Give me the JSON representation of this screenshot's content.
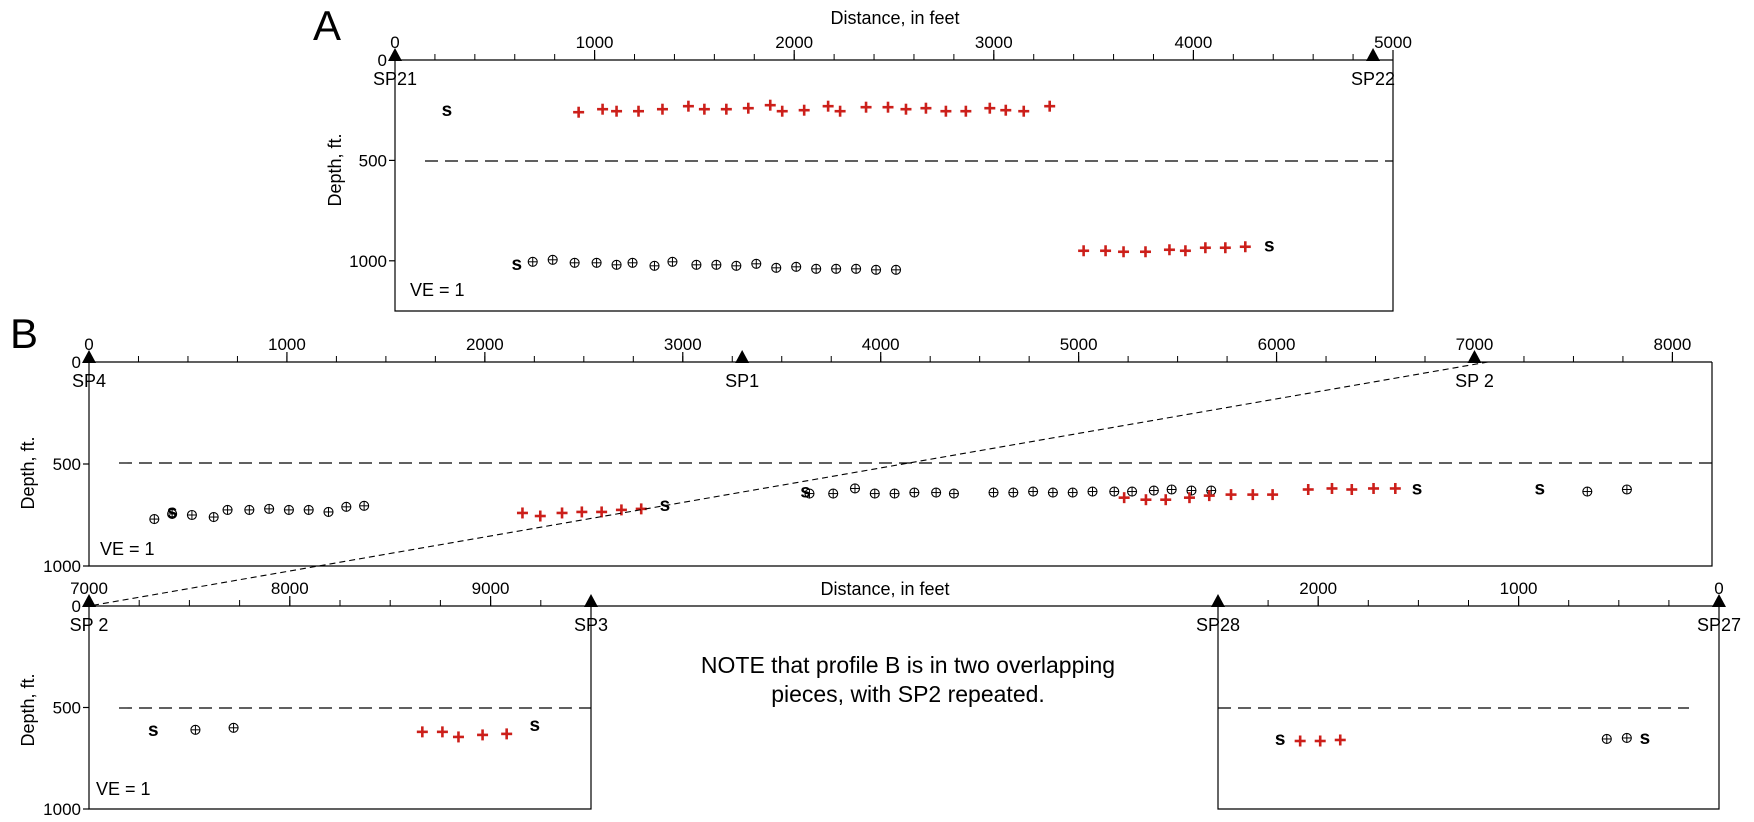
{
  "note": {
    "line1": "NOTE that profile B is in two overlapping",
    "line2": "pieces, with SP2 repeated."
  },
  "colors": {
    "plus": "#cc1f1a",
    "ink": "#000000"
  },
  "chart_data": [
    {
      "id": "A",
      "type": "scatter",
      "panel_label": "A",
      "xlabel": "Distance, in feet",
      "ylabel": "Depth, ft.",
      "ve_label": "VE = 1",
      "xlim": [
        0,
        5000
      ],
      "ylim": [
        1250,
        0
      ],
      "x_ticks": [
        0,
        1000,
        2000,
        3000,
        4000,
        5000
      ],
      "x_minor_step": 200,
      "y_ticks": [
        0,
        500,
        1000
      ],
      "dashed_depth": 500,
      "shotpoints": [
        {
          "label": "SP21",
          "x": 0
        },
        {
          "label": "SP22",
          "x": 4900
        }
      ],
      "series": [
        {
          "marker": "plus",
          "points": [
            [
              920,
              260
            ],
            [
              1040,
              245
            ],
            [
              1110,
              255
            ],
            [
              1220,
              255
            ],
            [
              1340,
              245
            ],
            [
              1470,
              230
            ],
            [
              1550,
              245
            ],
            [
              1660,
              245
            ],
            [
              1770,
              240
            ],
            [
              1880,
              225
            ],
            [
              1940,
              255
            ],
            [
              2050,
              250
            ],
            [
              2170,
              230
            ],
            [
              2230,
              255
            ],
            [
              2360,
              235
            ],
            [
              2470,
              235
            ],
            [
              2560,
              245
            ],
            [
              2660,
              240
            ],
            [
              2760,
              255
            ],
            [
              2860,
              255
            ],
            [
              2980,
              240
            ],
            [
              3060,
              250
            ],
            [
              3150,
              255
            ],
            [
              3280,
              230
            ]
          ]
        },
        {
          "marker": "plus",
          "points": [
            [
              3450,
              950
            ],
            [
              3560,
              950
            ],
            [
              3650,
              955
            ],
            [
              3760,
              955
            ],
            [
              3880,
              945
            ],
            [
              3960,
              950
            ],
            [
              4060,
              935
            ],
            [
              4160,
              935
            ],
            [
              4260,
              930
            ]
          ]
        },
        {
          "marker": "oplus",
          "points": [
            [
              690,
              1005
            ],
            [
              790,
              995
            ],
            [
              900,
              1010
            ],
            [
              1010,
              1010
            ],
            [
              1110,
              1020
            ],
            [
              1190,
              1010
            ],
            [
              1300,
              1025
            ],
            [
              1390,
              1005
            ],
            [
              1510,
              1020
            ],
            [
              1610,
              1020
            ],
            [
              1710,
              1025
            ],
            [
              1810,
              1015
            ],
            [
              1910,
              1035
            ],
            [
              2010,
              1030
            ],
            [
              2110,
              1040
            ],
            [
              2210,
              1040
            ],
            [
              2310,
              1040
            ],
            [
              2410,
              1045
            ],
            [
              2510,
              1045
            ]
          ]
        },
        {
          "marker": "s",
          "points": [
            [
              260,
              250
            ],
            [
              610,
              1015
            ],
            [
              4380,
              925
            ]
          ]
        }
      ]
    },
    {
      "id": "B1",
      "type": "scatter",
      "panel_label": "B",
      "xlabel": "Distance, in feet",
      "ylabel": "Depth, ft.",
      "ve_label": "VE = 1",
      "xlim": [
        0,
        8200
      ],
      "ylim": [
        1000,
        0
      ],
      "x_ticks": [
        0,
        1000,
        2000,
        3000,
        4000,
        5000,
        6000,
        7000,
        8000
      ],
      "x_minor_step": 250,
      "y_ticks": [
        0,
        500,
        1000
      ],
      "dashed_depth": 500,
      "shotpoints": [
        {
          "label": "SP4",
          "x": 0
        },
        {
          "label": "SP1",
          "x": 3300
        },
        {
          "label": "SP 2",
          "x": 7000
        }
      ],
      "series": [
        {
          "marker": "oplus",
          "points": [
            [
              330,
              770
            ],
            [
              420,
              745
            ],
            [
              520,
              750
            ],
            [
              630,
              760
            ],
            [
              700,
              725
            ],
            [
              810,
              725
            ],
            [
              910,
              720
            ],
            [
              1010,
              725
            ],
            [
              1110,
              725
            ],
            [
              1210,
              735
            ],
            [
              1300,
              710
            ],
            [
              1390,
              705
            ],
            [
              3640,
              645
            ],
            [
              3760,
              645
            ],
            [
              3870,
              620
            ],
            [
              3970,
              645
            ],
            [
              4070,
              645
            ],
            [
              4170,
              640
            ],
            [
              4280,
              640
            ],
            [
              4370,
              645
            ],
            [
              4570,
              640
            ],
            [
              4670,
              640
            ],
            [
              4770,
              635
            ],
            [
              4870,
              640
            ],
            [
              4970,
              640
            ],
            [
              5070,
              635
            ],
            [
              5180,
              635
            ],
            [
              5270,
              635
            ],
            [
              5380,
              630
            ],
            [
              5470,
              625
            ],
            [
              5570,
              630
            ],
            [
              5670,
              630
            ],
            [
              7570,
              635
            ],
            [
              7770,
              625
            ]
          ]
        },
        {
          "marker": "plus",
          "points": [
            [
              2190,
              740
            ],
            [
              2280,
              755
            ],
            [
              2390,
              740
            ],
            [
              2490,
              735
            ],
            [
              2590,
              735
            ],
            [
              2690,
              725
            ],
            [
              2790,
              720
            ],
            [
              5230,
              665
            ],
            [
              5340,
              675
            ],
            [
              5440,
              675
            ],
            [
              5560,
              665
            ],
            [
              5660,
              655
            ],
            [
              5770,
              650
            ],
            [
              5880,
              650
            ],
            [
              5980,
              650
            ],
            [
              6160,
              625
            ],
            [
              6280,
              620
            ],
            [
              6380,
              625
            ],
            [
              6490,
              620
            ],
            [
              6600,
              620
            ]
          ]
        },
        {
          "marker": "s",
          "points": [
            [
              420,
              735
            ],
            [
              2910,
              700
            ],
            [
              3620,
              635
            ],
            [
              6710,
              620
            ],
            [
              7330,
              620
            ]
          ]
        }
      ]
    },
    {
      "id": "B2",
      "type": "scatter",
      "xlabel": "Distance, in feet",
      "ylabel": "Depth, ft.",
      "ve_label": "VE = 1",
      "xlim": [
        7000,
        9500
      ],
      "ylim": [
        1000,
        0
      ],
      "x_ticks": [
        7000,
        8000,
        9000
      ],
      "x_minor_step": 250,
      "y_ticks": [
        0,
        500,
        1000
      ],
      "dashed_depth": 500,
      "shotpoints": [
        {
          "label": "SP 2",
          "x": 7000
        },
        {
          "label": "SP3",
          "x": 9500
        }
      ],
      "series": [
        {
          "marker": "oplus",
          "points": [
            [
              7530,
              610
            ],
            [
              7720,
              600
            ]
          ]
        },
        {
          "marker": "plus",
          "points": [
            [
              8660,
              620
            ],
            [
              8760,
              620
            ],
            [
              8840,
              645
            ],
            [
              8960,
              635
            ],
            [
              9080,
              630
            ]
          ]
        },
        {
          "marker": "s",
          "points": [
            [
              7320,
              610
            ],
            [
              9220,
              585
            ]
          ]
        }
      ]
    },
    {
      "id": "B3",
      "type": "scatter",
      "xlim": [
        2500,
        0
      ],
      "ylim": [
        1000,
        0
      ],
      "x_ticks": [
        2000,
        1000,
        0
      ],
      "x_minor_step": 250,
      "dashed_depth": 500,
      "shotpoints": [
        {
          "label": "SP28",
          "x": 2500
        },
        {
          "label": "SP27",
          "x": 0
        }
      ],
      "series": [
        {
          "marker": "plus",
          "points": [
            [
              2090,
              665
            ],
            [
              1990,
              665
            ],
            [
              1890,
              660
            ]
          ]
        },
        {
          "marker": "oplus",
          "points": [
            [
              560,
              655
            ],
            [
              460,
              650
            ]
          ]
        },
        {
          "marker": "s",
          "points": [
            [
              2190,
              655
            ],
            [
              370,
              650
            ]
          ]
        }
      ]
    }
  ]
}
